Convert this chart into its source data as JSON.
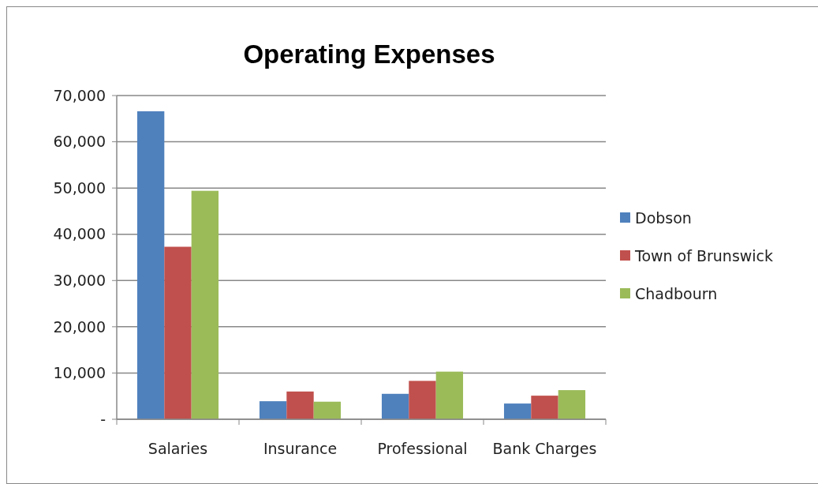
{
  "chart_data": {
    "type": "bar",
    "title": "Operating Expenses",
    "categories": [
      "Salaries",
      "Insurance",
      "Professional",
      "Bank Charges"
    ],
    "series": [
      {
        "name": "Dobson",
        "color": "#4f81bd",
        "values": [
          66600,
          3900,
          5500,
          3400
        ]
      },
      {
        "name": "Town of Brunswick",
        "color": "#c0504d",
        "values": [
          37300,
          6000,
          8300,
          5100
        ]
      },
      {
        "name": "Chadbourn",
        "color": "#9bbb59",
        "values": [
          49400,
          3800,
          10300,
          6300
        ]
      }
    ],
    "ylim": [
      0,
      70000
    ],
    "yticks": [
      {
        "value": 0,
        "label": "-"
      },
      {
        "value": 10000,
        "label": "10,000"
      },
      {
        "value": 20000,
        "label": "20,000"
      },
      {
        "value": 30000,
        "label": "30,000"
      },
      {
        "value": 40000,
        "label": "40,000"
      },
      {
        "value": 50000,
        "label": "50,000"
      },
      {
        "value": 60000,
        "label": "60,000"
      },
      {
        "value": 70000,
        "label": "70,000"
      }
    ],
    "grid": "y",
    "legend": "right"
  }
}
